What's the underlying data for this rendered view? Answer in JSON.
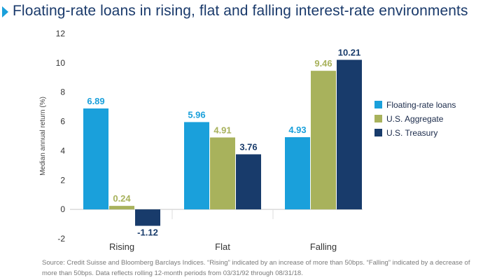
{
  "title": "Floating-rate loans in rising, flat and falling interest-rate environments",
  "source_note": "Source: Credit Suisse and Bloomberg Barclays Indices. “Rising” indicated by an increase of more than 50bps. “Falling” indicated by a decrease of more than 50bps. Data reflects rolling 12-month periods from 03/31/92 through 08/31/18.",
  "colors": {
    "title": "#1a3a6b",
    "marker": "#1aa0db"
  },
  "chart_data": {
    "type": "bar",
    "ylabel": "Median annual return (%)",
    "xlabel": "",
    "ylim": [
      -2,
      12
    ],
    "yticks": [
      -2,
      0,
      2,
      4,
      6,
      8,
      10,
      12
    ],
    "categories": [
      "Rising",
      "Flat",
      "Falling"
    ],
    "series": [
      {
        "name": "Floating-rate loans",
        "color": "#1aa0db",
        "values": [
          6.89,
          5.96,
          4.93
        ]
      },
      {
        "name": "U.S. Aggregate",
        "color": "#a8b25c",
        "values": [
          0.24,
          4.91,
          9.46
        ]
      },
      {
        "name": "U.S. Treasury",
        "color": "#183b6b",
        "values": [
          -1.12,
          3.76,
          10.21
        ]
      }
    ],
    "value_labels": [
      [
        "6.89",
        "0.24",
        "-1.12"
      ],
      [
        "5.96",
        "4.91",
        "3.76"
      ],
      [
        "4.93",
        "9.46",
        "10.21"
      ]
    ],
    "legend_position": "right",
    "grid": false
  }
}
